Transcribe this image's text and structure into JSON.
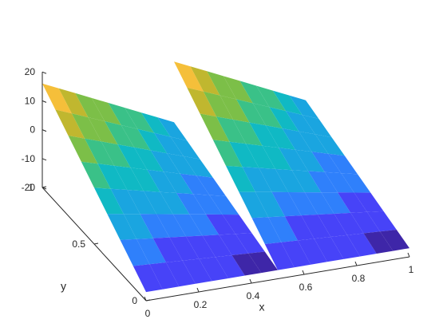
{
  "chart_data": {
    "type": "surface",
    "title": "",
    "xlabel": "x",
    "ylabel": "y",
    "zlabel": "",
    "xlim": [
      0,
      1
    ],
    "ylim": [
      0,
      1
    ],
    "zlim": [
      -20,
      20
    ],
    "xticks": [
      0,
      0.2,
      0.4,
      0.6,
      0.8,
      1
    ],
    "yticks": [
      0,
      0.5,
      1
    ],
    "zticks": [
      -20,
      -10,
      0,
      10,
      20
    ],
    "xtick_labels": [
      "0",
      "0.2",
      "0.4",
      "0.6",
      "0.8",
      "1"
    ],
    "ytick_labels": [
      "0",
      "0.5",
      "1"
    ],
    "ztick_labels": [
      "-20",
      "-10",
      "0",
      "10",
      "20"
    ],
    "grid": false,
    "colormap": "parula",
    "surfaces": [
      {
        "x_range": [
          0,
          0.5
        ],
        "y_range": [
          0,
          1
        ],
        "z_at_x0_y0": -17,
        "z_at_x1_y0": -17,
        "z_at_x0_y1": 16,
        "z_at_x1_y1": -5
      },
      {
        "x_range": [
          0.5,
          1
        ],
        "y_range": [
          0,
          1
        ],
        "z_at_x0_y0": -17,
        "z_at_x1_y0": -17,
        "z_at_x0_y1": 16,
        "z_at_x1_y1": -5
      }
    ]
  },
  "colors": {
    "parula": [
      "#3e26a8",
      "#4743f8",
      "#2f80fb",
      "#1aa5e0",
      "#10b9c4",
      "#3ac188",
      "#7cbf48",
      "#c0b72f",
      "#f5bf3a",
      "#f9e01e"
    ]
  }
}
